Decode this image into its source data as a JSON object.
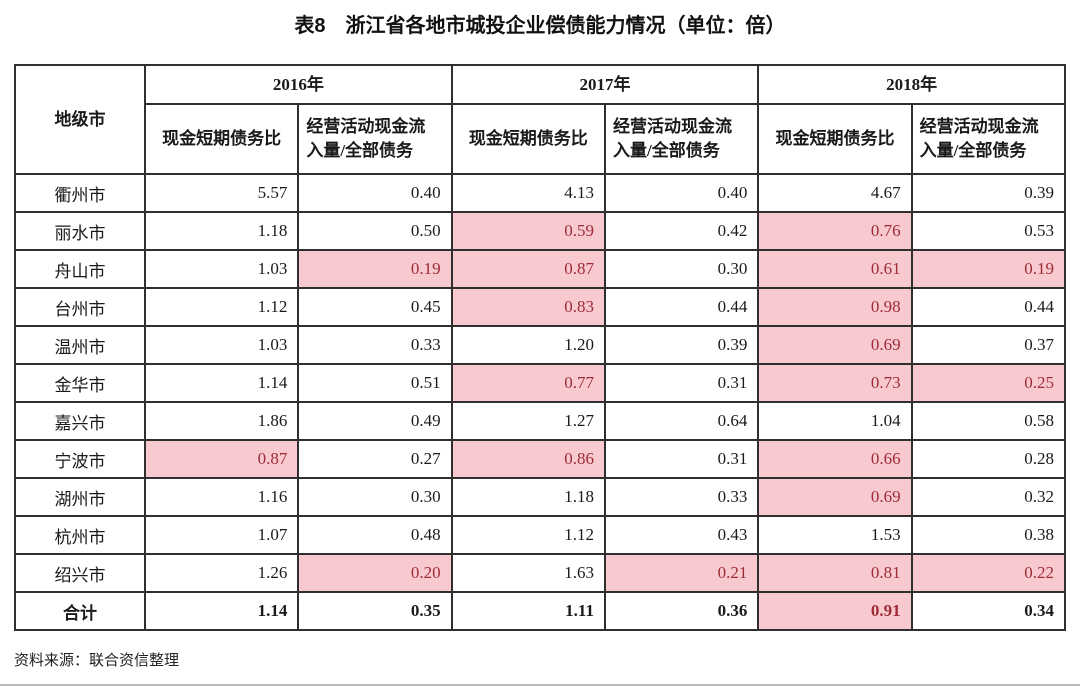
{
  "title": "表8　浙江省各地市城投企业偿债能力情况（单位：倍）",
  "source_note": "资料来源：联合资信整理",
  "colors": {
    "highlight_bg": "#f8cad0",
    "highlight_text": "#9e2b35",
    "border": "#2f2f2f",
    "bottom_rule": "#b9bcbe"
  },
  "table": {
    "city_header": "地级市",
    "year_groups": [
      {
        "year": "2016年",
        "sub": [
          "现金短期债务比",
          "经营活动现金流\n入量/全部债务"
        ]
      },
      {
        "year": "2017年",
        "sub": [
          "现金短期债务比",
          "经营活动现金流\n入量/全部债务"
        ]
      },
      {
        "year": "2018年",
        "sub": [
          "现金短期债务比",
          "经营活动现金流\n入量/全部债务"
        ]
      }
    ],
    "rows": [
      {
        "city": "衢州市",
        "is_total": false,
        "values": [
          "5.57",
          "0.40",
          "4.13",
          "0.40",
          "4.67",
          "0.39"
        ],
        "highlighted": [
          false,
          false,
          false,
          false,
          false,
          false
        ]
      },
      {
        "city": "丽水市",
        "is_total": false,
        "values": [
          "1.18",
          "0.50",
          "0.59",
          "0.42",
          "0.76",
          "0.53"
        ],
        "highlighted": [
          false,
          false,
          true,
          false,
          true,
          false
        ]
      },
      {
        "city": "舟山市",
        "is_total": false,
        "values": [
          "1.03",
          "0.19",
          "0.87",
          "0.30",
          "0.61",
          "0.19"
        ],
        "highlighted": [
          false,
          true,
          true,
          false,
          true,
          true
        ]
      },
      {
        "city": "台州市",
        "is_total": false,
        "values": [
          "1.12",
          "0.45",
          "0.83",
          "0.44",
          "0.98",
          "0.44"
        ],
        "highlighted": [
          false,
          false,
          true,
          false,
          true,
          false
        ]
      },
      {
        "city": "温州市",
        "is_total": false,
        "values": [
          "1.03",
          "0.33",
          "1.20",
          "0.39",
          "0.69",
          "0.37"
        ],
        "highlighted": [
          false,
          false,
          false,
          false,
          true,
          false
        ]
      },
      {
        "city": "金华市",
        "is_total": false,
        "values": [
          "1.14",
          "0.51",
          "0.77",
          "0.31",
          "0.73",
          "0.25"
        ],
        "highlighted": [
          false,
          false,
          true,
          false,
          true,
          true
        ]
      },
      {
        "city": "嘉兴市",
        "is_total": false,
        "values": [
          "1.86",
          "0.49",
          "1.27",
          "0.64",
          "1.04",
          "0.58"
        ],
        "highlighted": [
          false,
          false,
          false,
          false,
          false,
          false
        ]
      },
      {
        "city": "宁波市",
        "is_total": false,
        "values": [
          "0.87",
          "0.27",
          "0.86",
          "0.31",
          "0.66",
          "0.28"
        ],
        "highlighted": [
          true,
          false,
          true,
          false,
          true,
          false
        ]
      },
      {
        "city": "湖州市",
        "is_total": false,
        "values": [
          "1.16",
          "0.30",
          "1.18",
          "0.33",
          "0.69",
          "0.32"
        ],
        "highlighted": [
          false,
          false,
          false,
          false,
          true,
          false
        ]
      },
      {
        "city": "杭州市",
        "is_total": false,
        "values": [
          "1.07",
          "0.48",
          "1.12",
          "0.43",
          "1.53",
          "0.38"
        ],
        "highlighted": [
          false,
          false,
          false,
          false,
          false,
          false
        ]
      },
      {
        "city": "绍兴市",
        "is_total": false,
        "values": [
          "1.26",
          "0.20",
          "1.63",
          "0.21",
          "0.81",
          "0.22"
        ],
        "highlighted": [
          false,
          true,
          false,
          true,
          true,
          true
        ]
      },
      {
        "city": "合计",
        "is_total": true,
        "values": [
          "1.14",
          "0.35",
          "1.11",
          "0.36",
          "0.91",
          "0.34"
        ],
        "highlighted": [
          false,
          false,
          false,
          false,
          true,
          false
        ]
      }
    ]
  }
}
